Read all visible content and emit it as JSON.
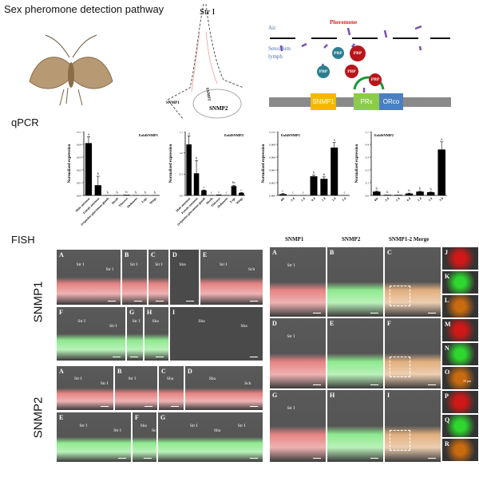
{
  "header": {
    "title": "Sex pheromone detection pathway",
    "qpcr_label": "qPCR",
    "fish_label": "FISH"
  },
  "sketch": {
    "label": "Str I",
    "snmp1": "SNMP1",
    "snmp2a": "SNMP2",
    "snmp2b": "SNMP2"
  },
  "pathway": {
    "air": "Air",
    "pheromone": "Pheromone",
    "lymph1": "Sensillum",
    "lymph2": "lymph",
    "pbp": "PBP",
    "snmp1": "SNMP1",
    "prx": "PRx",
    "orco": "ORco",
    "colors": {
      "teal": "#2a7f8f",
      "red": "#b8161b",
      "snmp1": "#f5b800",
      "prx": "#8ccc4a",
      "orco": "#4a7fc1",
      "membrane": "#8a8a8a",
      "pheromone_text": "#e02020",
      "lymph_text": "#4a6fa5"
    }
  },
  "chart_data": [
    {
      "type": "bar",
      "title": "EoblSNMP1",
      "ylabel": "Normalized expression",
      "ylim": [
        0,
        0.05
      ],
      "yticks": [
        "0.00",
        "0.01",
        "0.02",
        "0.03",
        "0.04",
        "0.05"
      ],
      "categories": [
        "Male antennae",
        "Female antennae",
        "Ovipositor-pheromone glands",
        "Heads",
        "Thoraces",
        "Abdomens",
        "Legs",
        "Wings"
      ],
      "values": [
        0.041,
        0.008,
        0.0003,
        0.0003,
        0.0005,
        0.0003,
        0.0002,
        0.0002
      ],
      "errors": [
        0.005,
        0.007,
        0,
        0,
        0,
        0,
        0,
        0
      ],
      "letters": [
        "a",
        "b",
        "b",
        "b",
        "b",
        "b",
        "b",
        "b"
      ]
    },
    {
      "type": "bar",
      "title": "EoblSNMP2",
      "ylabel": "Normalized expression",
      "ylim": [
        0,
        1.5
      ],
      "yticks": [
        "0.0",
        "0.5",
        "1.0",
        "1.5"
      ],
      "categories": [
        "Male antennae",
        "Female antennae",
        "Ovipositor-pheromone glands",
        "Heads",
        "Thoraces",
        "Abdomens",
        "Legs",
        "Wings"
      ],
      "values": [
        1.2,
        0.52,
        0.12,
        0.01,
        0.02,
        0.01,
        0.22,
        0.06
      ],
      "errors": [
        0.2,
        0.3,
        0.01,
        0,
        0,
        0,
        0.02,
        0.01
      ],
      "letters": [
        "a",
        "b",
        "c",
        "c",
        "c",
        "c",
        "bc",
        "c"
      ]
    },
    {
      "type": "bar",
      "title": "EoblSNMP1",
      "ylabel": "Normalized expression",
      "ylim": [
        0,
        0.01
      ],
      "yticks": [
        "0.000",
        "0.002",
        "0.004",
        "0.006",
        "0.008",
        "0.010"
      ],
      "categories": [
        "4th",
        "-3 d",
        "-1 d",
        "0 d",
        "1 d",
        "2 d",
        "3 d"
      ],
      "values": [
        0.0002,
        5e-05,
        5e-05,
        0.003,
        0.0026,
        0.0075,
        5e-05
      ],
      "errors": [
        0.0001,
        0,
        0,
        0.0002,
        0.0003,
        0.0008,
        0
      ],
      "letters": [
        "c",
        "c",
        "c",
        "b",
        "b",
        "a",
        "c"
      ]
    },
    {
      "type": "bar",
      "title": "EoblSNMP2",
      "ylabel": "Normalized expression",
      "ylim": [
        0,
        0.5
      ],
      "yticks": [
        "0.0",
        "0.1",
        "0.2",
        "0.3",
        "0.4",
        "0.5"
      ],
      "categories": [
        "4th",
        "-3 d",
        "-1 d",
        "0 d",
        "1 d",
        "2 d",
        "3 d"
      ],
      "values": [
        0.03,
        0.005,
        0.005,
        0.015,
        0.03,
        0.025,
        0.36
      ],
      "errors": [
        0.005,
        0,
        0,
        0.003,
        0.003,
        0.003,
        0.06
      ],
      "letters": [
        "b",
        "b",
        "b",
        "b",
        "b",
        "b",
        "a"
      ]
    }
  ],
  "fish": {
    "row_snmp1": "SNMP1",
    "row_snmp2": "SNMP2",
    "col_headers": [
      "SNMP1",
      "SNMP2",
      "SNMP1-2 Merge"
    ],
    "signal_colors": {
      "red": "#d01818",
      "green": "#2ed62e",
      "merge": "#c86a10"
    },
    "left_panels": [
      {
        "letter": "A",
        "labels": [
          "Str I",
          "Str I"
        ],
        "signal": "red"
      },
      {
        "letter": "B",
        "labels": [
          "Str I"
        ],
        "signal": "red"
      },
      {
        "letter": "C",
        "labels": [
          "Str I"
        ],
        "signal": "red"
      },
      {
        "letter": "D",
        "labels": [
          "Sba"
        ],
        "signal": "none"
      },
      {
        "letter": "E",
        "labels": [
          "Str I",
          "Sch"
        ],
        "signal": "red"
      },
      {
        "letter": "F",
        "labels": [
          "Str I",
          "Str I"
        ],
        "signal": "green"
      },
      {
        "letter": "G",
        "labels": [
          "Str I"
        ],
        "signal": "green"
      },
      {
        "letter": "H",
        "labels": [
          "Sba"
        ],
        "signal": "green"
      },
      {
        "letter": "I",
        "labels": [
          "Sba",
          "Sba"
        ],
        "signal": "none"
      },
      {
        "letter": "A",
        "labels": [
          "Str I",
          "Str I"
        ],
        "signal": "red"
      },
      {
        "letter": "B",
        "labels": [
          "Str I"
        ],
        "signal": "red"
      },
      {
        "letter": "C",
        "labels": [
          "Sba"
        ],
        "signal": "red"
      },
      {
        "letter": "D",
        "labels": [
          "Sba",
          "Sch"
        ],
        "signal": "red"
      },
      {
        "letter": "E",
        "labels": [
          "Str I",
          "Str I"
        ],
        "signal": "green"
      },
      {
        "letter": "F",
        "labels": [
          "Sba",
          "Sch"
        ],
        "signal": "green"
      },
      {
        "letter": "G",
        "labels": [
          "Str I",
          "Sba",
          "Str I"
        ],
        "signal": "green"
      }
    ],
    "right_panels": [
      {
        "letter": "A",
        "labels": [
          "Str I"
        ],
        "signal": "red"
      },
      {
        "letter": "B",
        "labels": [],
        "signal": "green"
      },
      {
        "letter": "C",
        "labels": [],
        "signal": "merge"
      },
      {
        "letter": "D",
        "labels": [
          "Str I"
        ],
        "signal": "red"
      },
      {
        "letter": "E",
        "labels": [],
        "signal": "green"
      },
      {
        "letter": "F",
        "labels": [],
        "signal": "merge"
      },
      {
        "letter": "G",
        "labels": [
          "Str I"
        ],
        "signal": "red"
      },
      {
        "letter": "H",
        "labels": [],
        "signal": "green"
      },
      {
        "letter": "I",
        "labels": [],
        "signal": "merge"
      }
    ],
    "insets": [
      {
        "letter": "J",
        "signal": "red"
      },
      {
        "letter": "K",
        "signal": "green"
      },
      {
        "letter": "L",
        "signal": "merge"
      },
      {
        "letter": "M",
        "signal": "red"
      },
      {
        "letter": "N",
        "signal": "green"
      },
      {
        "letter": "O",
        "signal": "merge"
      },
      {
        "letter": "P",
        "signal": "red"
      },
      {
        "letter": "Q",
        "signal": "green"
      },
      {
        "letter": "R",
        "signal": "merge"
      }
    ],
    "scale_label": "10 μm"
  }
}
